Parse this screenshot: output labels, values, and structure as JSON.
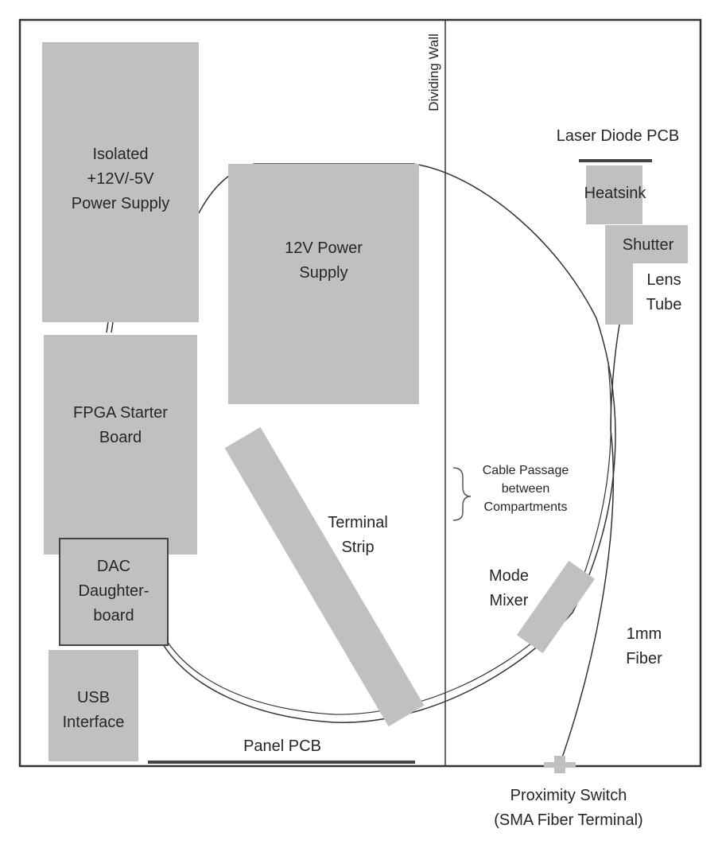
{
  "labels": {
    "dividing_wall": "Dividing Wall",
    "isolated_psu": "Isolated\n+12V/-5V\nPower Supply",
    "psu_12v": "12V Power\nSupply",
    "fpga": "FPGA Starter\nBoard",
    "dac": "DAC\nDaughter-\nboard",
    "usb": "USB\nInterface",
    "terminal_strip": "Terminal\nStrip",
    "panel_pcb": "Panel PCB",
    "laser_diode_pcb": "Laser Diode PCB",
    "heatsink": "Heatsink",
    "shutter": "Shutter",
    "lens_tube": "Lens\nTube",
    "cable_passage": "Cable Passage\nbetween\nCompartments",
    "mode_mixer": "Mode\nMixer",
    "fiber": "1mm\nFiber",
    "proximity_switch": "Proximity Switch\n(SMA Fiber Terminal)"
  },
  "colors": {
    "block_fill": "#c0c0c0",
    "outline": "#333333",
    "text": "#262626"
  }
}
